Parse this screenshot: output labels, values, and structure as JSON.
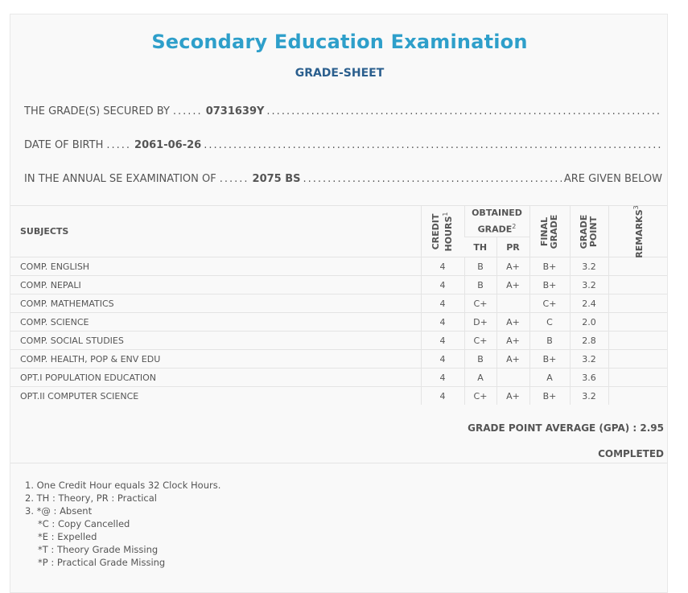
{
  "header": {
    "title": "Secondary Education Examination",
    "subtitle": "GRADE-SHEET"
  },
  "info": {
    "secured_by_label": "THE GRADE(S) SECURED BY",
    "secured_by_value": "0731639Y",
    "dob_label": "DATE OF BIRTH",
    "dob_value": "2061-06-26",
    "exam_label": "IN THE ANNUAL SE EXAMINATION OF",
    "exam_value": "2075 BS",
    "exam_tail": "ARE GIVEN BELOW"
  },
  "table": {
    "headers": {
      "subjects": "SUBJECTS",
      "credit_hours_line1": "CREDIT",
      "credit_hours_line2": "HOURS",
      "credit_hours_sup": "1",
      "obtained_grade_line1": "OBTAINED",
      "obtained_grade_line2": "GRADE",
      "obtained_grade_sup": "2",
      "th": "TH",
      "pr": "PR",
      "final_grade_line1": "FINAL",
      "final_grade_line2": "GRADE",
      "grade_point_line1": "GRADE",
      "grade_point_line2": "POINT",
      "remarks": "REMARKS",
      "remarks_sup": "3"
    },
    "rows": [
      {
        "subject": "COMP. ENGLISH",
        "credit": "4",
        "th": "B",
        "pr": "A+",
        "final": "B+",
        "point": "3.2",
        "remarks": ""
      },
      {
        "subject": "COMP. NEPALI",
        "credit": "4",
        "th": "B",
        "pr": "A+",
        "final": "B+",
        "point": "3.2",
        "remarks": ""
      },
      {
        "subject": "COMP. MATHEMATICS",
        "credit": "4",
        "th": "C+",
        "pr": "",
        "final": "C+",
        "point": "2.4",
        "remarks": ""
      },
      {
        "subject": "COMP. SCIENCE",
        "credit": "4",
        "th": "D+",
        "pr": "A+",
        "final": "C",
        "point": "2.0",
        "remarks": ""
      },
      {
        "subject": "COMP. SOCIAL STUDIES",
        "credit": "4",
        "th": "C+",
        "pr": "A+",
        "final": "B",
        "point": "2.8",
        "remarks": ""
      },
      {
        "subject": "COMP. HEALTH, POP & ENV EDU",
        "credit": "4",
        "th": "B",
        "pr": "A+",
        "final": "B+",
        "point": "3.2",
        "remarks": ""
      },
      {
        "subject": "OPT.I POPULATION EDUCATION",
        "credit": "4",
        "th": "A",
        "pr": "",
        "final": "A",
        "point": "3.6",
        "remarks": ""
      },
      {
        "subject": "OPT.II COMPUTER SCIENCE",
        "credit": "4",
        "th": "C+",
        "pr": "A+",
        "final": "B+",
        "point": "3.2",
        "remarks": ""
      }
    ]
  },
  "summary": {
    "gpa_label": "GRADE POINT AVERAGE (GPA) : 2.95",
    "status": "COMPLETED"
  },
  "notes": [
    "1. One Credit Hour equals 32 Clock Hours.",
    "2. TH : Theory, PR : Practical",
    "3. *@ : Absent",
    "*C : Copy Cancelled",
    "*E : Expelled",
    "*T : Theory Grade Missing",
    "*P : Practical Grade Missing"
  ],
  "colors": {
    "title": "#2e9fca",
    "subtitle": "#2b5f8e",
    "text": "#555555",
    "background": "#f9f9f9"
  }
}
